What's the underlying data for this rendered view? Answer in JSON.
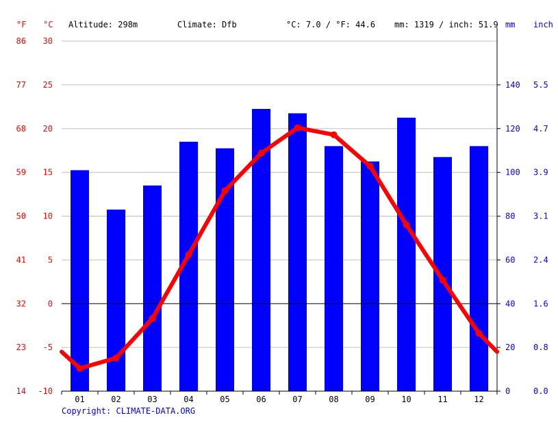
{
  "header": {
    "unit_f": "°F",
    "unit_c": "°C",
    "altitude": "Altitude: 298m",
    "climate": "Climate: Dfb",
    "temp_avg": "°C: 7.0 / °F: 44.6",
    "precip_total": "mm: 1319 / inch: 51.9",
    "unit_mm": "mm",
    "unit_inch": "inch"
  },
  "footer": {
    "copyright": "Copyright: CLIMATE-DATA.ORG"
  },
  "colors": {
    "temperature": "#ff0000",
    "precipitation": "#0000ff",
    "grid": "#c0c0c0",
    "zero_line": "#000000"
  },
  "chart_data": {
    "type": "bar+line",
    "categories": [
      "01",
      "02",
      "03",
      "04",
      "05",
      "06",
      "07",
      "08",
      "09",
      "10",
      "11",
      "12"
    ],
    "precipitation_mm": [
      101,
      83,
      94,
      114,
      111,
      129,
      127,
      112,
      105,
      125,
      107,
      112
    ],
    "temperature_c": [
      -7.4,
      -6.2,
      -1.7,
      5.6,
      12.9,
      17.2,
      20.1,
      19.3,
      15.7,
      9.0,
      2.7,
      -3.4
    ],
    "temperature_line_ends_c": [
      -5.5,
      -5.5
    ],
    "axes": {
      "left_f": {
        "ticks": [
          "86",
          "77",
          "68",
          "59",
          "50",
          "41",
          "32",
          "23",
          "14"
        ]
      },
      "left_c": {
        "ticks": [
          "30",
          "25",
          "20",
          "15",
          "10",
          "5",
          "0",
          "-5",
          "-10"
        ],
        "range": [
          -10,
          30
        ]
      },
      "right_mm": {
        "ticks": [
          "140",
          "120",
          "100",
          "80",
          "60",
          "40",
          "20",
          "0"
        ],
        "range": [
          0,
          160
        ]
      },
      "right_inch": {
        "ticks": [
          "5.5",
          "4.7",
          "3.9",
          "3.1",
          "2.4",
          "1.6",
          "0.8",
          "0.0"
        ]
      }
    },
    "grid": true,
    "legend": "none"
  }
}
